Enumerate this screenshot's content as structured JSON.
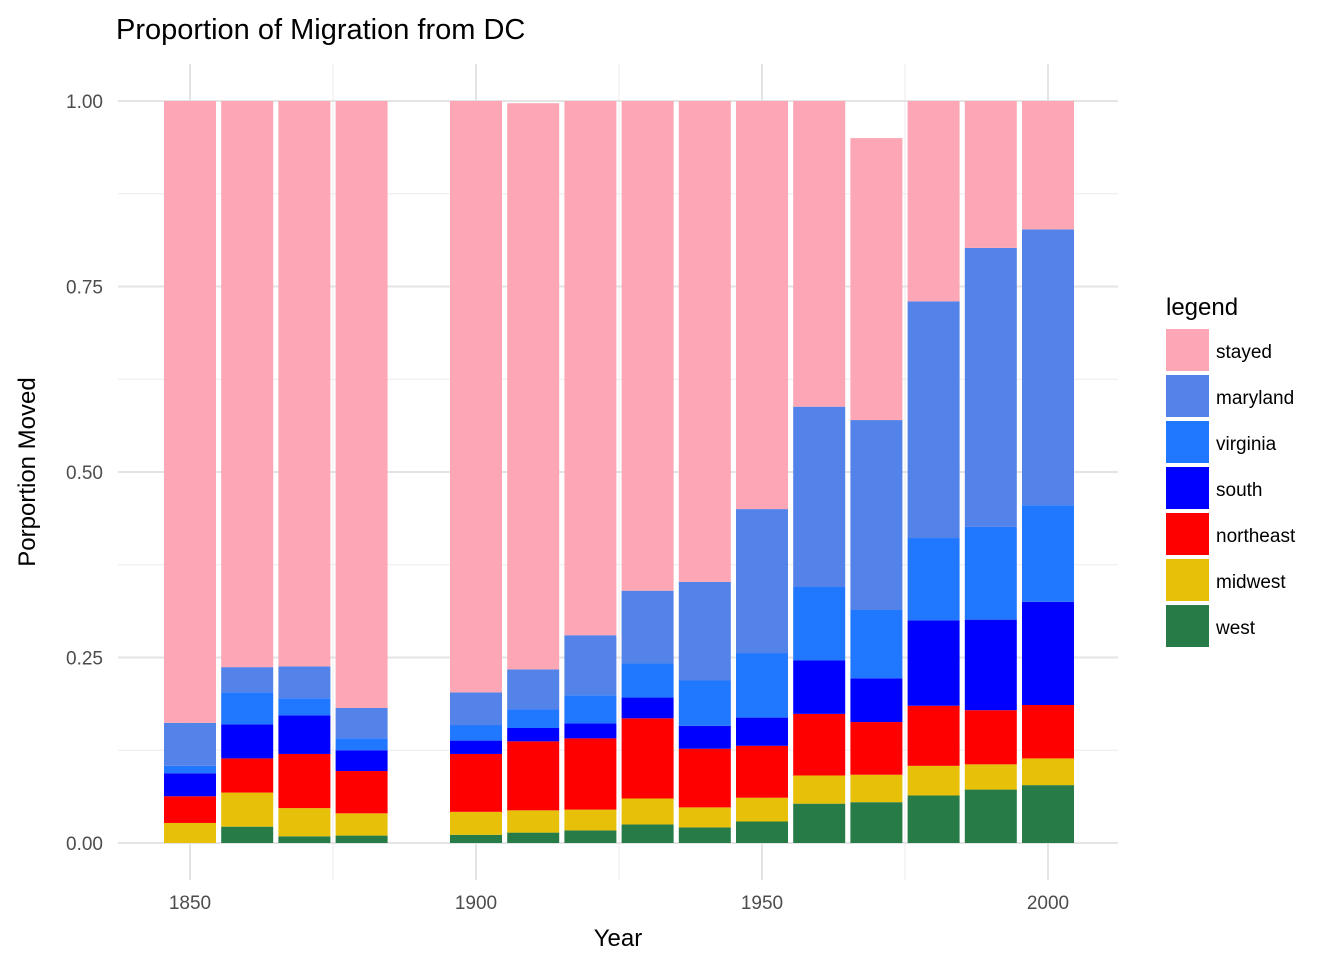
{
  "chart_data": {
    "type": "bar",
    "stacked": true,
    "title": "Proportion of Migration from DC",
    "xlabel": "Year",
    "ylabel": "Porportion Moved",
    "xlim": [
      1840,
      2010
    ],
    "ylim": [
      0,
      1.0
    ],
    "x_ticks": [
      1850,
      1900,
      1950,
      2000
    ],
    "x_tick_labels": [
      "1850",
      "1900",
      "1950",
      "2000"
    ],
    "y_ticks": [
      0,
      0.25,
      0.5,
      0.75,
      1.0
    ],
    "y_tick_labels": [
      "0.00",
      "0.25",
      "0.50",
      "0.75",
      "1.00"
    ],
    "grid": true,
    "legend_title": "legend",
    "legend_position": "right",
    "x": [
      1850,
      1860,
      1870,
      1880,
      1900,
      1910,
      1920,
      1930,
      1940,
      1950,
      1960,
      1970,
      1980,
      1990,
      2000
    ],
    "series": [
      {
        "name": "west",
        "color": "#267b47",
        "values": [
          0.0,
          0.022,
          0.009,
          0.01,
          0.011,
          0.014,
          0.017,
          0.025,
          0.021,
          0.029,
          0.053,
          0.055,
          0.064,
          0.072,
          0.078
        ]
      },
      {
        "name": "midwest",
        "color": "#e6c009",
        "values": [
          0.027,
          0.046,
          0.038,
          0.03,
          0.031,
          0.03,
          0.028,
          0.035,
          0.027,
          0.032,
          0.038,
          0.037,
          0.04,
          0.034,
          0.036
        ]
      },
      {
        "name": "northeast",
        "color": "#ff0000",
        "values": [
          0.036,
          0.046,
          0.073,
          0.057,
          0.078,
          0.093,
          0.096,
          0.108,
          0.079,
          0.07,
          0.083,
          0.071,
          0.081,
          0.073,
          0.072
        ]
      },
      {
        "name": "south",
        "color": "#0000ff",
        "values": [
          0.031,
          0.046,
          0.052,
          0.028,
          0.018,
          0.018,
          0.02,
          0.028,
          0.031,
          0.038,
          0.072,
          0.059,
          0.115,
          0.122,
          0.139
        ]
      },
      {
        "name": "virginia",
        "color": "#1f78ff",
        "values": [
          0.01,
          0.043,
          0.023,
          0.016,
          0.021,
          0.025,
          0.038,
          0.046,
          0.061,
          0.087,
          0.099,
          0.092,
          0.111,
          0.125,
          0.13
        ]
      },
      {
        "name": "maryland",
        "color": "#5382e8",
        "values": [
          0.058,
          0.034,
          0.043,
          0.041,
          0.044,
          0.054,
          0.081,
          0.098,
          0.133,
          0.194,
          0.243,
          0.256,
          0.319,
          0.376,
          0.372
        ]
      },
      {
        "name": "stayed",
        "color": "#fda6b5",
        "values": [
          0.838,
          0.763,
          0.762,
          0.818,
          0.797,
          0.763,
          0.72,
          0.66,
          0.648,
          0.55,
          0.412,
          0.38,
          0.27,
          0.198,
          0.173
        ]
      }
    ],
    "legend_order": [
      "stayed",
      "maryland",
      "virginia",
      "south",
      "northeast",
      "midwest",
      "west"
    ]
  }
}
